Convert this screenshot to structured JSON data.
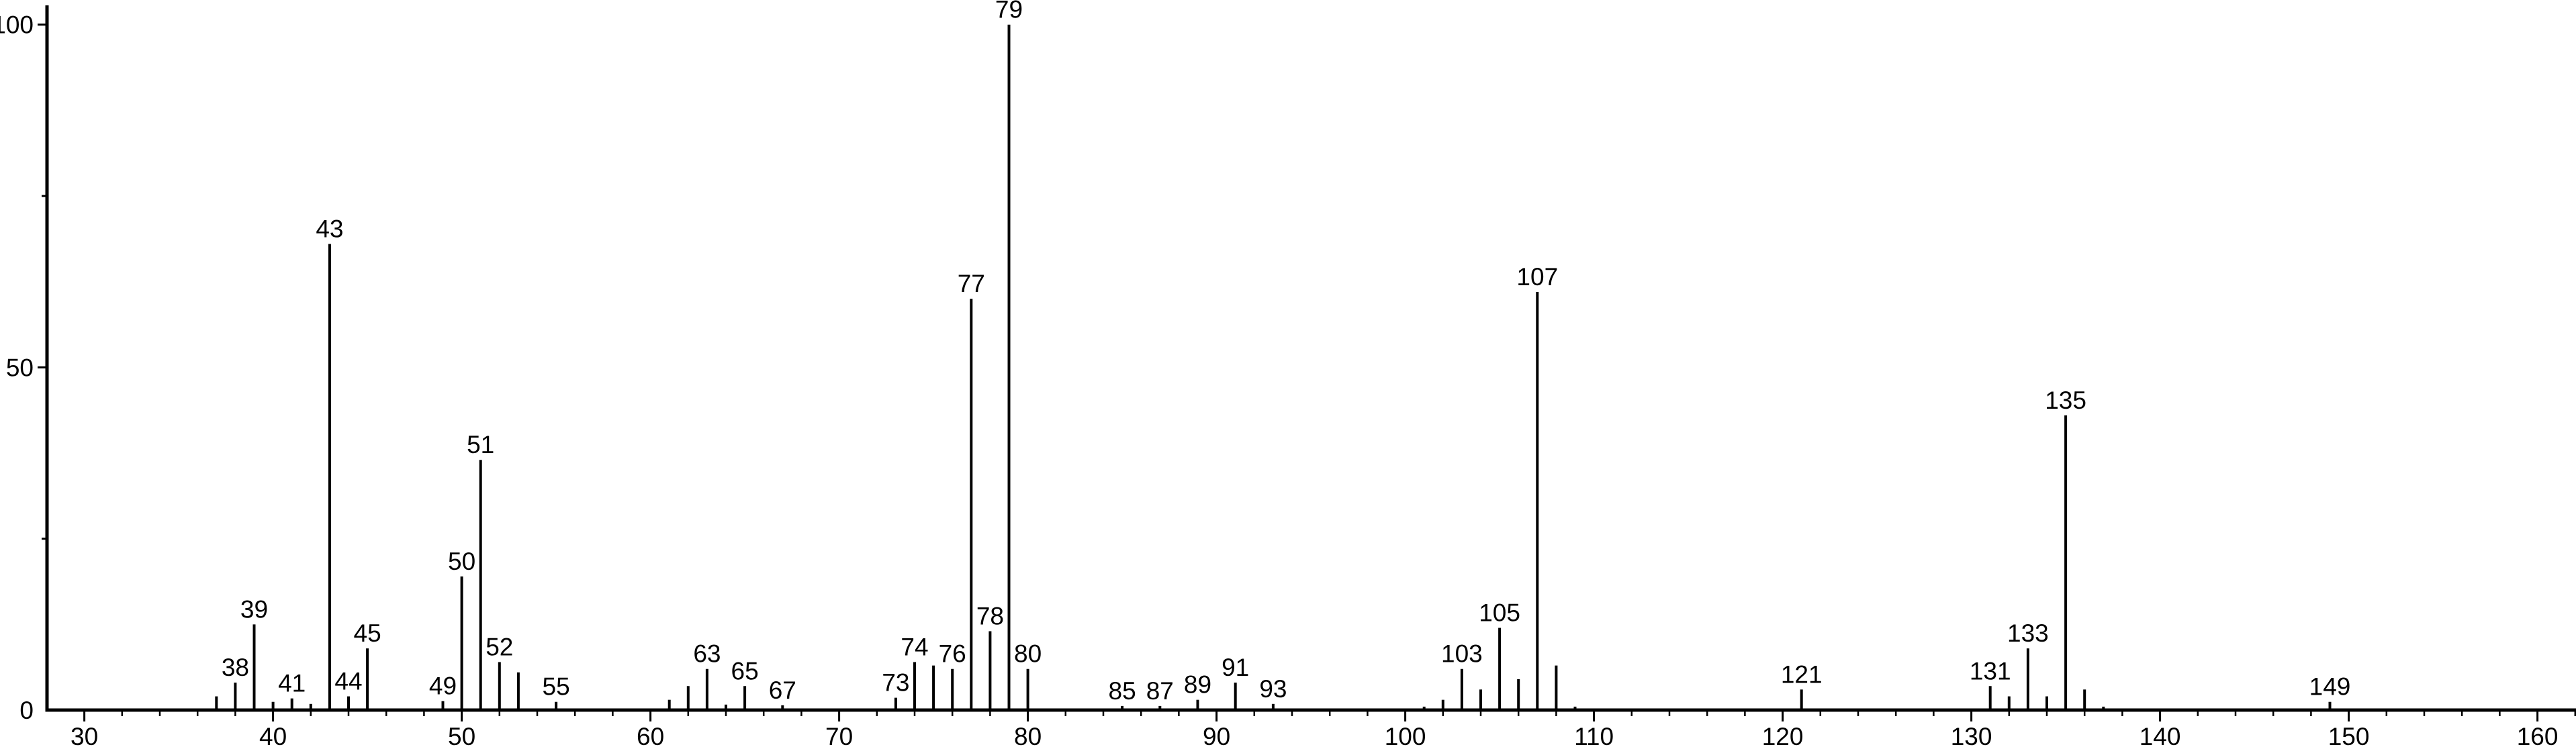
{
  "colors": {
    "foreground": "#000000",
    "background": "#ffffff"
  },
  "chart_data": {
    "type": "bar",
    "kind": "mass-spectrum",
    "title": "",
    "xlabel": "",
    "ylabel": "",
    "grid": false,
    "legend": null,
    "xlim": [
      28,
      162.5
    ],
    "ylim": [
      0,
      100
    ],
    "x_major_ticks": [
      30,
      40,
      50,
      60,
      70,
      80,
      90,
      100,
      110,
      120,
      130,
      140,
      150,
      160
    ],
    "x_minor_tick_step": 2,
    "y_major_ticks": [
      0,
      50,
      100
    ],
    "y_minor_ticks": [
      25,
      75
    ],
    "peaks": [
      {
        "mz": 37,
        "intensity": 2,
        "labeled": false
      },
      {
        "mz": 38,
        "intensity": 4,
        "labeled": true
      },
      {
        "mz": 39,
        "intensity": 12.5,
        "labeled": true
      },
      {
        "mz": 40,
        "intensity": 1.2,
        "labeled": false
      },
      {
        "mz": 41,
        "intensity": 1.7,
        "labeled": true
      },
      {
        "mz": 42,
        "intensity": 0.9,
        "labeled": false
      },
      {
        "mz": 43,
        "intensity": 68,
        "labeled": true
      },
      {
        "mz": 44,
        "intensity": 2,
        "labeled": true
      },
      {
        "mz": 45,
        "intensity": 9,
        "labeled": true
      },
      {
        "mz": 49,
        "intensity": 1.3,
        "labeled": true
      },
      {
        "mz": 50,
        "intensity": 19.5,
        "labeled": true
      },
      {
        "mz": 51,
        "intensity": 36.5,
        "labeled": true
      },
      {
        "mz": 52,
        "intensity": 7,
        "labeled": true
      },
      {
        "mz": 53,
        "intensity": 5.5,
        "labeled": false
      },
      {
        "mz": 55,
        "intensity": 1.2,
        "labeled": true
      },
      {
        "mz": 61,
        "intensity": 1.5,
        "labeled": false
      },
      {
        "mz": 62,
        "intensity": 3.5,
        "labeled": false
      },
      {
        "mz": 63,
        "intensity": 6,
        "labeled": true
      },
      {
        "mz": 64,
        "intensity": 0.8,
        "labeled": false
      },
      {
        "mz": 65,
        "intensity": 3.5,
        "labeled": true
      },
      {
        "mz": 67,
        "intensity": 0.7,
        "labeled": true
      },
      {
        "mz": 73,
        "intensity": 1.8,
        "labeled": true
      },
      {
        "mz": 74,
        "intensity": 7,
        "labeled": true
      },
      {
        "mz": 75,
        "intensity": 6.5,
        "labeled": false
      },
      {
        "mz": 76,
        "intensity": 6,
        "labeled": true
      },
      {
        "mz": 77,
        "intensity": 60,
        "labeled": true
      },
      {
        "mz": 78,
        "intensity": 11.5,
        "labeled": true
      },
      {
        "mz": 79,
        "intensity": 100,
        "labeled": true
      },
      {
        "mz": 80,
        "intensity": 6,
        "labeled": true
      },
      {
        "mz": 85,
        "intensity": 0.6,
        "labeled": true
      },
      {
        "mz": 87,
        "intensity": 0.6,
        "labeled": true
      },
      {
        "mz": 89,
        "intensity": 1.5,
        "labeled": true
      },
      {
        "mz": 91,
        "intensity": 4,
        "labeled": true
      },
      {
        "mz": 93,
        "intensity": 0.9,
        "labeled": true
      },
      {
        "mz": 101,
        "intensity": 0.5,
        "labeled": false
      },
      {
        "mz": 102,
        "intensity": 1.5,
        "labeled": false
      },
      {
        "mz": 103,
        "intensity": 6,
        "labeled": true
      },
      {
        "mz": 104,
        "intensity": 3,
        "labeled": false
      },
      {
        "mz": 105,
        "intensity": 12,
        "labeled": true
      },
      {
        "mz": 106,
        "intensity": 4.5,
        "labeled": false
      },
      {
        "mz": 107,
        "intensity": 61,
        "labeled": true
      },
      {
        "mz": 108,
        "intensity": 6.5,
        "labeled": false
      },
      {
        "mz": 109,
        "intensity": 0.5,
        "labeled": false
      },
      {
        "mz": 121,
        "intensity": 3,
        "labeled": true
      },
      {
        "mz": 131,
        "intensity": 3.5,
        "labeled": true
      },
      {
        "mz": 132,
        "intensity": 2,
        "labeled": false
      },
      {
        "mz": 133,
        "intensity": 9,
        "labeled": true
      },
      {
        "mz": 134,
        "intensity": 2,
        "labeled": false
      },
      {
        "mz": 135,
        "intensity": 43,
        "labeled": true
      },
      {
        "mz": 136,
        "intensity": 3,
        "labeled": false
      },
      {
        "mz": 137,
        "intensity": 0.5,
        "labeled": false
      },
      {
        "mz": 149,
        "intensity": 1.2,
        "labeled": true
      }
    ]
  }
}
